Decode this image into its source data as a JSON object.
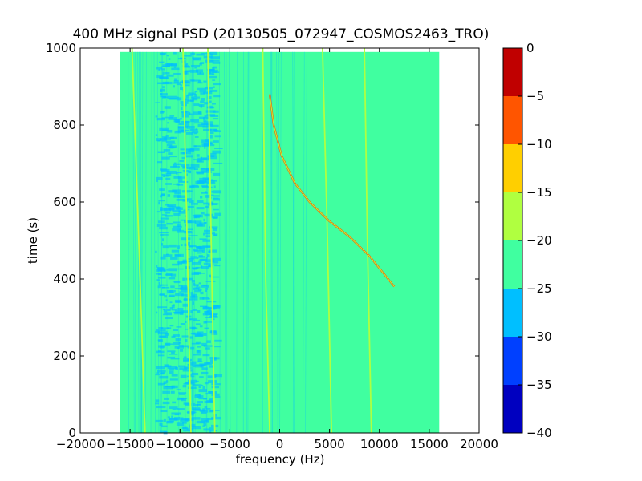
{
  "chart_data": {
    "type": "heatmap",
    "title": "400 MHz signal PSD (20130505_072947_COSMOS2463_TRO)",
    "xlabel": "frequency (Hz)",
    "ylabel": "time (s)",
    "xlim": [
      -20000,
      20000
    ],
    "ylim": [
      0,
      1000
    ],
    "x_ticks": [
      -20000,
      -15000,
      -10000,
      -5000,
      0,
      5000,
      10000,
      15000,
      20000
    ],
    "x_tick_labels": [
      "−20000",
      "−15000",
      "−10000",
      "−5000",
      "0",
      "5000",
      "10000",
      "15000",
      "20000"
    ],
    "y_ticks": [
      0,
      200,
      400,
      600,
      800,
      1000
    ],
    "y_tick_labels": [
      "0",
      "200",
      "400",
      "600",
      "800",
      "1000"
    ],
    "data_extent": {
      "x": [
        -16000,
        16000
      ],
      "y": [
        0,
        990
      ]
    },
    "background_level_dB": -22,
    "quiet_region_dB": -27,
    "quiet_region_x": [
      -12500,
      -6500
    ],
    "colorbar": {
      "levels": [
        -40,
        -35,
        -30,
        -25,
        -20,
        -15,
        -10,
        -5,
        0
      ],
      "tick_labels": [
        "−40",
        "−35",
        "−30",
        "−25",
        "−20",
        "−15",
        "−10",
        "−5",
        "0"
      ],
      "colors": [
        "#0000c0",
        "#0040ff",
        "#00bfff",
        "#40ffa0",
        "#b0ff40",
        "#ffcf00",
        "#ff5500",
        "#c00000"
      ]
    },
    "lines": [
      {
        "points": [
          [
            -14800,
            1000
          ],
          [
            -14000,
            400
          ],
          [
            -13500,
            0
          ]
        ]
      },
      {
        "points": [
          [
            -9700,
            1000
          ],
          [
            -9200,
            400
          ],
          [
            -8900,
            0
          ]
        ]
      },
      {
        "points": [
          [
            -7200,
            1000
          ],
          [
            -6800,
            400
          ],
          [
            -6500,
            0
          ]
        ]
      },
      {
        "points": [
          [
            -1700,
            1000
          ],
          [
            -1400,
            400
          ],
          [
            -1000,
            0
          ]
        ]
      },
      {
        "points": [
          [
            4300,
            1000
          ],
          [
            4800,
            500
          ],
          [
            5200,
            0
          ]
        ]
      },
      {
        "points": [
          [
            8500,
            1000
          ],
          [
            8800,
            500
          ],
          [
            9200,
            0
          ]
        ]
      }
    ],
    "doppler_curve": {
      "points": [
        [
          -1000,
          880
        ],
        [
          -600,
          800
        ],
        [
          200,
          720
        ],
        [
          1500,
          650
        ],
        [
          3000,
          600
        ],
        [
          5000,
          550
        ],
        [
          7000,
          510
        ],
        [
          9000,
          460
        ],
        [
          11500,
          380
        ]
      ]
    }
  }
}
